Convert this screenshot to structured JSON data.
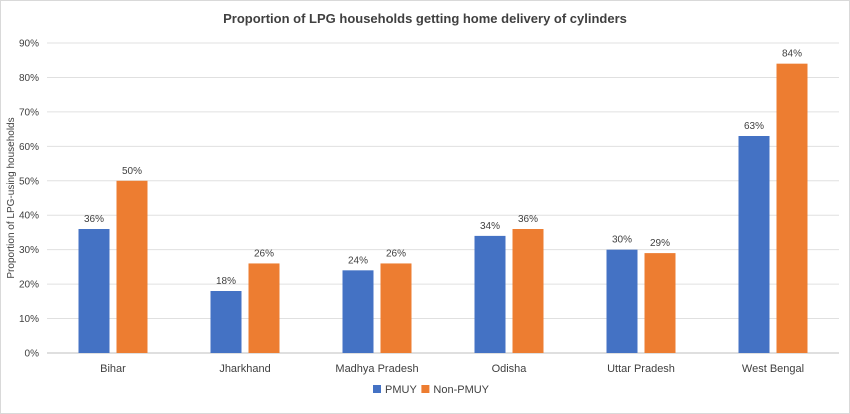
{
  "chart_data": {
    "type": "bar",
    "title": "Proportion of LPG households  getting home delivery of cylinders",
    "ylabel": "Proportion of LPG-using households",
    "xlabel": "",
    "categories": [
      "Bihar",
      "Jharkhand",
      "Madhya Pradesh",
      "Odisha",
      "Uttar Pradesh",
      "West Bengal"
    ],
    "series": [
      {
        "name": "PMUY",
        "color": "#4472C4",
        "values": [
          36,
          18,
          24,
          34,
          30,
          63
        ],
        "labels": [
          "36%",
          "18%",
          "24%",
          "34%",
          "30%",
          "63%"
        ]
      },
      {
        "name": "Non-PMUY",
        "color": "#ED7D31",
        "values": [
          50,
          26,
          26,
          36,
          29,
          84
        ],
        "labels": [
          "50%",
          "26%",
          "26%",
          "36%",
          "29%",
          "84%"
        ]
      }
    ],
    "ylim": [
      0,
      90
    ],
    "yticks": [
      "0%",
      "10%",
      "20%",
      "30%",
      "40%",
      "50%",
      "60%",
      "70%",
      "80%",
      "90%"
    ],
    "grid": true,
    "legend_position": "bottom"
  }
}
